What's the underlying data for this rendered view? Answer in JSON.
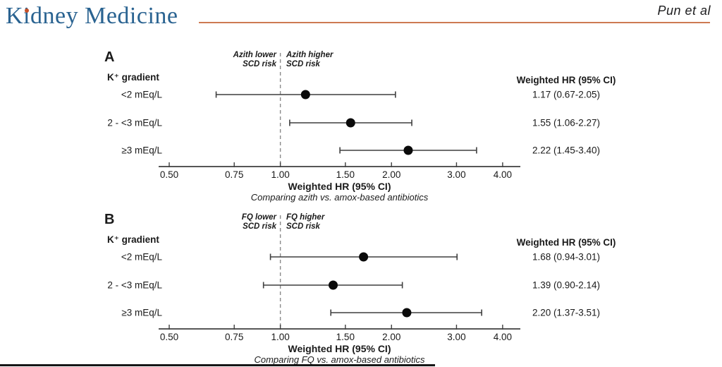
{
  "header": {
    "journal": "Kidney Medicine",
    "author": "Pun et al"
  },
  "colors": {
    "logo_blue": "#2a6391",
    "logo_dot_orange": "#c44f27",
    "header_rule_orange": "#cd7a52",
    "ink": "#1a1a1a",
    "plot_line": "#3f3f3f",
    "marker": "#0a0a0a",
    "reference_dash": "#8a8a8a"
  },
  "chart_data": [
    {
      "type": "forest",
      "panel_label": "A",
      "group_header": "K⁺ gradient",
      "ref_value": 1.0,
      "ref_label_left_lines": [
        "Azith lower",
        "SCD risk"
      ],
      "ref_label_right_lines": [
        "Azith higher",
        "SCD risk"
      ],
      "value_column_header": "Weighted HR (95% CI)",
      "series": [
        {
          "category": "<2 mEq/L",
          "hr": 1.17,
          "ci_low": 0.67,
          "ci_high": 2.05,
          "label": "1.17 (0.67-2.05)"
        },
        {
          "category": "2 - <3 mEq/L",
          "hr": 1.55,
          "ci_low": 1.06,
          "ci_high": 2.27,
          "label": "1.55 (1.06-2.27)"
        },
        {
          "category": "≥3 mEq/L",
          "hr": 2.22,
          "ci_low": 1.45,
          "ci_high": 3.4,
          "label": "2.22 (1.45-3.40)"
        }
      ],
      "xscale": "log",
      "xlim": [
        0.47,
        4.5
      ],
      "xticks": [
        "0.50",
        "0.75",
        "1.00",
        "1.50",
        "2.00",
        "3.00",
        "4.00"
      ],
      "xtick_values": [
        0.5,
        0.75,
        1.0,
        1.5,
        2.0,
        3.0,
        4.0
      ],
      "xlabel": "Weighted HR (95% CI)",
      "caption": "Comparing azith vs. amox-based antibiotics"
    },
    {
      "type": "forest",
      "panel_label": "B",
      "group_header": "K⁺ gradient",
      "ref_value": 1.0,
      "ref_label_left_lines": [
        "FQ lower",
        "SCD risk"
      ],
      "ref_label_right_lines": [
        "FQ higher",
        "SCD risk"
      ],
      "value_column_header": "Weighted HR (95% CI)",
      "series": [
        {
          "category": "<2 mEq/L",
          "hr": 1.68,
          "ci_low": 0.94,
          "ci_high": 3.01,
          "label": "1.68 (0.94-3.01)"
        },
        {
          "category": "2 - <3 mEq/L",
          "hr": 1.39,
          "ci_low": 0.9,
          "ci_high": 2.14,
          "label": "1.39 (0.90-2.14)"
        },
        {
          "category": "≥3 mEq/L",
          "hr": 2.2,
          "ci_low": 1.37,
          "ci_high": 3.51,
          "label": "2.20 (1.37-3.51)"
        }
      ],
      "xscale": "log",
      "xlim": [
        0.47,
        4.5
      ],
      "xticks": [
        "0.50",
        "0.75",
        "1.00",
        "1.50",
        "2.00",
        "3.00",
        "4.00"
      ],
      "xtick_values": [
        0.5,
        0.75,
        1.0,
        1.5,
        2.0,
        3.0,
        4.0
      ],
      "xlabel": "Weighted HR (95% CI)",
      "caption": "Comparing FQ vs. amox-based antibiotics"
    }
  ]
}
